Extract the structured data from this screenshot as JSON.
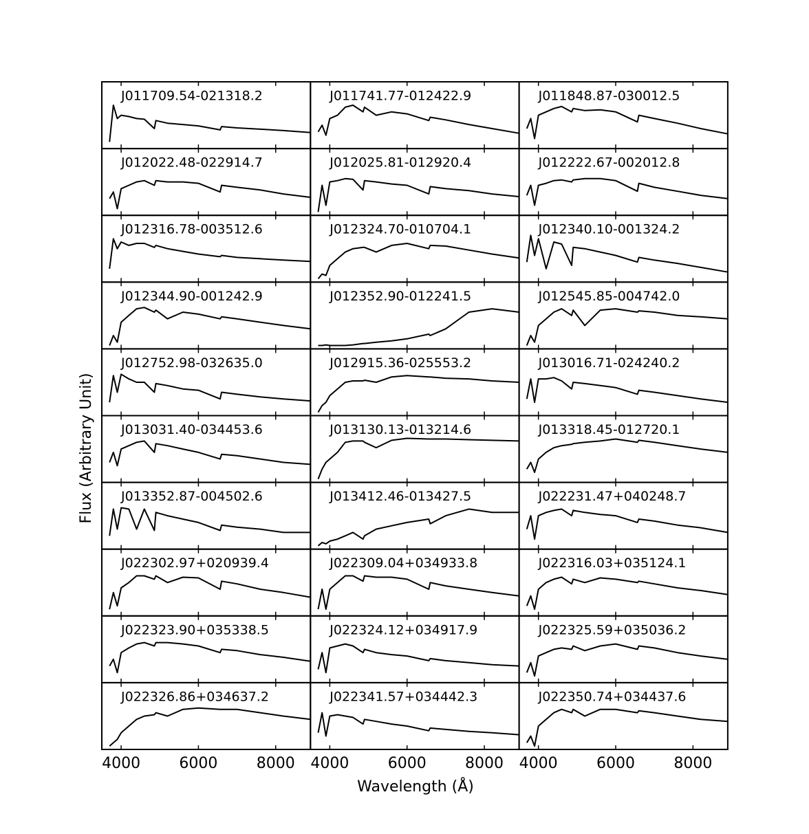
{
  "chart_data": {
    "type": "line",
    "xlabel": "Wavelength (Å)",
    "ylabel": "Flux (Arbitrary Unit)",
    "color": "#000000",
    "xlim": [
      3500,
      8900
    ],
    "ylim": [
      0,
      1
    ],
    "xticks": [
      4000,
      6000,
      8000
    ],
    "x": [
      3700,
      3800,
      3900,
      4000,
      4200,
      4400,
      4600,
      4861,
      4900,
      5200,
      5600,
      6000,
      6563,
      6600,
      7000,
      7600,
      8200,
      8900
    ],
    "panels": [
      {
        "title": "J011709.54-021318.2",
        "values": [
          0.1,
          0.65,
          0.45,
          0.5,
          0.48,
          0.45,
          0.44,
          0.3,
          0.42,
          0.38,
          0.36,
          0.34,
          0.28,
          0.33,
          0.31,
          0.29,
          0.27,
          0.24
        ]
      },
      {
        "title": "J011741.77-012422.9",
        "values": [
          0.25,
          0.35,
          0.2,
          0.45,
          0.5,
          0.62,
          0.65,
          0.55,
          0.62,
          0.5,
          0.55,
          0.52,
          0.42,
          0.47,
          0.43,
          0.36,
          0.3,
          0.23
        ]
      },
      {
        "title": "J011848.87-030012.5",
        "values": [
          0.3,
          0.45,
          0.15,
          0.5,
          0.55,
          0.6,
          0.63,
          0.55,
          0.6,
          0.57,
          0.58,
          0.55,
          0.4,
          0.5,
          0.45,
          0.38,
          0.3,
          0.22
        ]
      },
      {
        "title": "J012022.48-022914.7",
        "values": [
          0.25,
          0.35,
          0.1,
          0.4,
          0.45,
          0.5,
          0.52,
          0.45,
          0.52,
          0.5,
          0.5,
          0.48,
          0.35,
          0.45,
          0.42,
          0.38,
          0.32,
          0.27
        ]
      },
      {
        "title": "J012025.81-012920.4",
        "values": [
          0.05,
          0.45,
          0.15,
          0.5,
          0.52,
          0.55,
          0.54,
          0.38,
          0.52,
          0.5,
          0.47,
          0.45,
          0.32,
          0.43,
          0.4,
          0.37,
          0.32,
          0.28
        ]
      },
      {
        "title": "J012222.67-002012.8",
        "values": [
          0.3,
          0.45,
          0.15,
          0.45,
          0.48,
          0.52,
          0.53,
          0.5,
          0.53,
          0.55,
          0.55,
          0.52,
          0.36,
          0.48,
          0.42,
          0.36,
          0.3,
          0.25
        ]
      },
      {
        "title": "J012316.78-003512.6",
        "values": [
          0.2,
          0.65,
          0.5,
          0.6,
          0.55,
          0.58,
          0.58,
          0.52,
          0.55,
          0.5,
          0.46,
          0.42,
          0.38,
          0.4,
          0.37,
          0.35,
          0.33,
          0.31
        ]
      },
      {
        "title": "J012324.70-010704.1",
        "values": [
          0.05,
          0.12,
          0.1,
          0.25,
          0.35,
          0.45,
          0.5,
          0.52,
          0.52,
          0.45,
          0.55,
          0.58,
          0.5,
          0.55,
          0.54,
          0.48,
          0.42,
          0.36
        ]
      },
      {
        "title": "J012340.10-001324.2",
        "values": [
          0.3,
          0.7,
          0.4,
          0.65,
          0.2,
          0.6,
          0.57,
          0.25,
          0.52,
          0.5,
          0.45,
          0.4,
          0.3,
          0.37,
          0.33,
          0.28,
          0.22,
          0.15
        ]
      },
      {
        "title": "J012344.90-001242.9",
        "values": [
          0.05,
          0.2,
          0.1,
          0.4,
          0.5,
          0.6,
          0.62,
          0.55,
          0.58,
          0.45,
          0.55,
          0.52,
          0.45,
          0.48,
          0.45,
          0.4,
          0.35,
          0.3
        ]
      },
      {
        "title": "J012352.90-012241.5",
        "values": [
          0.05,
          0.05,
          0.06,
          0.05,
          0.05,
          0.05,
          0.06,
          0.08,
          0.08,
          0.1,
          0.12,
          0.15,
          0.22,
          0.2,
          0.3,
          0.55,
          0.6,
          0.55
        ]
      },
      {
        "title": "J012545.85-004742.0",
        "values": [
          0.05,
          0.2,
          0.1,
          0.35,
          0.45,
          0.55,
          0.6,
          0.5,
          0.58,
          0.35,
          0.58,
          0.6,
          0.55,
          0.57,
          0.55,
          0.5,
          0.48,
          0.45
        ]
      },
      {
        "title": "J012752.98-032635.0",
        "values": [
          0.2,
          0.6,
          0.35,
          0.62,
          0.55,
          0.5,
          0.5,
          0.35,
          0.48,
          0.45,
          0.4,
          0.38,
          0.25,
          0.35,
          0.32,
          0.28,
          0.25,
          0.22
        ]
      },
      {
        "title": "J012915.36-025553.2",
        "values": [
          0.05,
          0.15,
          0.2,
          0.3,
          0.4,
          0.5,
          0.52,
          0.52,
          0.53,
          0.5,
          0.58,
          0.6,
          0.58,
          0.58,
          0.56,
          0.55,
          0.52,
          0.5
        ]
      },
      {
        "title": "J013016.71-024240.2",
        "values": [
          0.25,
          0.55,
          0.2,
          0.55,
          0.55,
          0.57,
          0.52,
          0.4,
          0.5,
          0.48,
          0.45,
          0.42,
          0.32,
          0.38,
          0.35,
          0.3,
          0.25,
          0.2
        ]
      },
      {
        "title": "J013031.40-034453.6",
        "values": [
          0.3,
          0.45,
          0.25,
          0.5,
          0.55,
          0.6,
          0.62,
          0.45,
          0.58,
          0.55,
          0.5,
          0.45,
          0.35,
          0.42,
          0.4,
          0.35,
          0.3,
          0.27
        ]
      },
      {
        "title": "J013130.13-013214.6",
        "values": [
          0.05,
          0.2,
          0.3,
          0.35,
          0.45,
          0.6,
          0.62,
          0.62,
          0.6,
          0.52,
          0.63,
          0.66,
          0.65,
          0.65,
          0.65,
          0.64,
          0.63,
          0.62
        ]
      },
      {
        "title": "J013318.45-012720.1",
        "values": [
          0.2,
          0.3,
          0.15,
          0.35,
          0.45,
          0.52,
          0.55,
          0.57,
          0.58,
          0.6,
          0.62,
          0.65,
          0.6,
          0.63,
          0.6,
          0.55,
          0.5,
          0.45
        ]
      },
      {
        "title": "J013352.87-004502.6",
        "values": [
          0.2,
          0.6,
          0.3,
          0.62,
          0.6,
          0.3,
          0.6,
          0.28,
          0.55,
          0.5,
          0.45,
          0.4,
          0.28,
          0.36,
          0.33,
          0.3,
          0.25,
          0.25
        ]
      },
      {
        "title": "J013412.46-013427.5",
        "values": [
          0.05,
          0.1,
          0.08,
          0.12,
          0.15,
          0.2,
          0.25,
          0.15,
          0.2,
          0.3,
          0.35,
          0.4,
          0.45,
          0.38,
          0.5,
          0.6,
          0.55,
          0.55
        ]
      },
      {
        "title": "J022231.47+040248.7",
        "values": [
          0.3,
          0.5,
          0.15,
          0.5,
          0.55,
          0.58,
          0.6,
          0.5,
          0.58,
          0.55,
          0.52,
          0.5,
          0.4,
          0.45,
          0.42,
          0.36,
          0.32,
          0.25
        ]
      },
      {
        "title": "J022302.97+020939.4",
        "values": [
          0.1,
          0.35,
          0.15,
          0.42,
          0.5,
          0.6,
          0.6,
          0.55,
          0.6,
          0.5,
          0.58,
          0.57,
          0.4,
          0.52,
          0.48,
          0.4,
          0.35,
          0.28
        ]
      },
      {
        "title": "J022309.04+034933.8",
        "values": [
          0.1,
          0.4,
          0.1,
          0.4,
          0.5,
          0.6,
          0.6,
          0.52,
          0.6,
          0.58,
          0.58,
          0.55,
          0.4,
          0.5,
          0.45,
          0.4,
          0.35,
          0.3
        ]
      },
      {
        "title": "J022316.03+035124.1",
        "values": [
          0.15,
          0.3,
          0.1,
          0.4,
          0.5,
          0.55,
          0.58,
          0.48,
          0.55,
          0.5,
          0.57,
          0.55,
          0.5,
          0.52,
          0.48,
          0.42,
          0.38,
          0.32
        ]
      },
      {
        "title": "J022323.90+035338.5",
        "values": [
          0.25,
          0.35,
          0.15,
          0.45,
          0.52,
          0.58,
          0.6,
          0.55,
          0.6,
          0.6,
          0.58,
          0.55,
          0.45,
          0.5,
          0.48,
          0.42,
          0.38,
          0.32
        ]
      },
      {
        "title": "J022324.12+034917.9",
        "values": [
          0.2,
          0.45,
          0.15,
          0.52,
          0.55,
          0.58,
          0.55,
          0.45,
          0.5,
          0.45,
          0.42,
          0.4,
          0.33,
          0.36,
          0.33,
          0.3,
          0.27,
          0.25
        ]
      },
      {
        "title": "J022325.59+035036.2",
        "values": [
          0.15,
          0.3,
          0.1,
          0.4,
          0.45,
          0.5,
          0.52,
          0.5,
          0.55,
          0.48,
          0.55,
          0.58,
          0.5,
          0.55,
          0.52,
          0.45,
          0.4,
          0.35
        ]
      },
      {
        "title": "J022326.86+034637.2",
        "values": [
          0.05,
          0.1,
          0.15,
          0.25,
          0.35,
          0.45,
          0.5,
          0.52,
          0.55,
          0.5,
          0.6,
          0.62,
          0.6,
          0.6,
          0.6,
          0.55,
          0.5,
          0.45
        ]
      },
      {
        "title": "J022341.57+034442.3",
        "values": [
          0.25,
          0.55,
          0.2,
          0.5,
          0.52,
          0.5,
          0.48,
          0.38,
          0.45,
          0.42,
          0.38,
          0.35,
          0.28,
          0.32,
          0.3,
          0.27,
          0.25,
          0.22
        ]
      },
      {
        "title": "J022350.74+034437.6",
        "values": [
          0.1,
          0.2,
          0.05,
          0.35,
          0.45,
          0.55,
          0.6,
          0.55,
          0.6,
          0.5,
          0.6,
          0.6,
          0.55,
          0.58,
          0.55,
          0.5,
          0.45,
          0.42
        ]
      }
    ]
  }
}
